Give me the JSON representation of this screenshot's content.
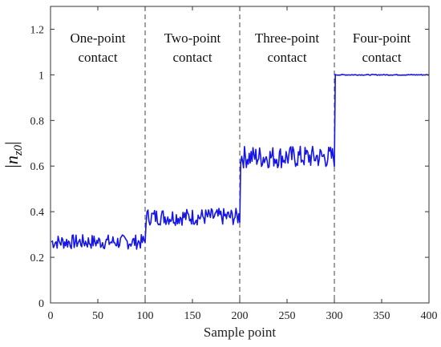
{
  "chart_data": {
    "type": "line",
    "xlabel": "Sample point",
    "xlim": [
      0,
      400
    ],
    "ylim": [
      0,
      1.3
    ],
    "xticks": [
      0,
      50,
      100,
      150,
      200,
      250,
      300,
      350,
      400
    ],
    "yticks": [
      0,
      0.2,
      0.4,
      0.6,
      0.8,
      1,
      1.2
    ],
    "ytick_labels": [
      "0",
      "0.2",
      "0.4",
      "0.6",
      "0.8",
      "1",
      "1.2"
    ],
    "ylabel": {
      "open": "|",
      "var": "n",
      "sub": "z0",
      "close": "|"
    },
    "separators": [
      100,
      200,
      300
    ],
    "regions": [
      {
        "label_line1": "One-point",
        "label_line2": "contact",
        "x_center": 50
      },
      {
        "label_line1": "Two-point",
        "label_line2": "contact",
        "x_center": 150
      },
      {
        "label_line1": "Three-point",
        "label_line2": "contact",
        "x_center": 250
      },
      {
        "label_line1": "Four-point",
        "label_line2": "contact",
        "x_center": 350
      }
    ],
    "series": [
      {
        "color": "#1515e6",
        "segments": [
          {
            "x_start": 1,
            "x_end": 100,
            "mean": 0.27,
            "min": 0.235,
            "max": 0.3
          },
          {
            "x_start": 101,
            "x_end": 200,
            "mean": 0.375,
            "min": 0.34,
            "max": 0.415
          },
          {
            "x_start": 201,
            "x_end": 300,
            "mean": 0.64,
            "min": 0.59,
            "max": 0.69
          },
          {
            "x_start": 301,
            "x_end": 400,
            "mean": 1.0,
            "min": 0.998,
            "max": 1.002
          }
        ]
      }
    ],
    "grid": false
  }
}
